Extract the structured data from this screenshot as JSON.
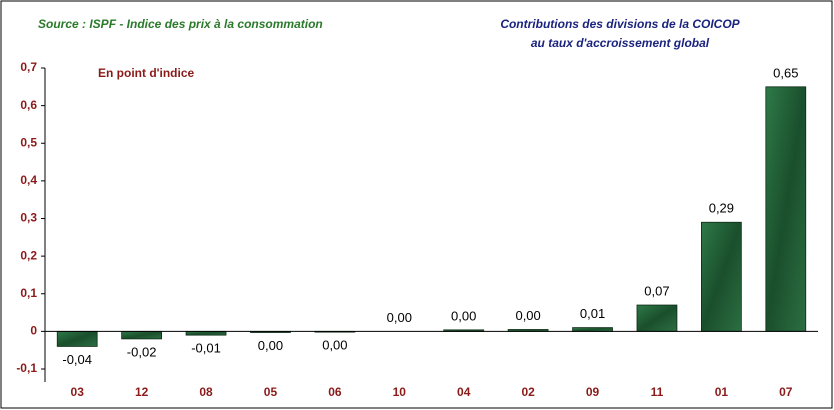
{
  "chart_data": {
    "type": "bar",
    "source": "Source : ISPF - Indice des prix à la consommation",
    "title": "Contributions des divisions de la COICOP",
    "subtitle": "au taux d'accroissement global",
    "annotation": "En point d'indice",
    "categories": [
      "03",
      "12",
      "08",
      "05",
      "06",
      "10",
      "04",
      "02",
      "09",
      "11",
      "01",
      "07"
    ],
    "values": [
      -0.04,
      -0.02,
      -0.01,
      -0.003,
      -0.002,
      0,
      0.004,
      0.005,
      0.01,
      0.07,
      0.29,
      0.65
    ],
    "value_labels": [
      "-0,04",
      "-0,02",
      "-0,01",
      "0,00",
      "0,00",
      "0,00",
      "0,00",
      "0,00",
      "0,01",
      "0,07",
      "0,29",
      "0,65"
    ],
    "color": "#1f5a34",
    "ylim": [
      -0.1,
      0.7
    ],
    "yticks": [
      {
        "value": -0.1,
        "label": "-0,1"
      },
      0,
      {
        "value": 0.1,
        "label": "0,1"
      },
      {
        "value": 0.2,
        "label": "0,2"
      },
      {
        "value": 0.3,
        "label": "0,3"
      },
      {
        "value": 0.4,
        "label": "0,4"
      },
      {
        "value": 0.5,
        "label": "0,5"
      },
      {
        "value": 0.6,
        "label": "0,6"
      },
      {
        "value": 0.7,
        "label": "0,7"
      }
    ],
    "grid": false
  }
}
